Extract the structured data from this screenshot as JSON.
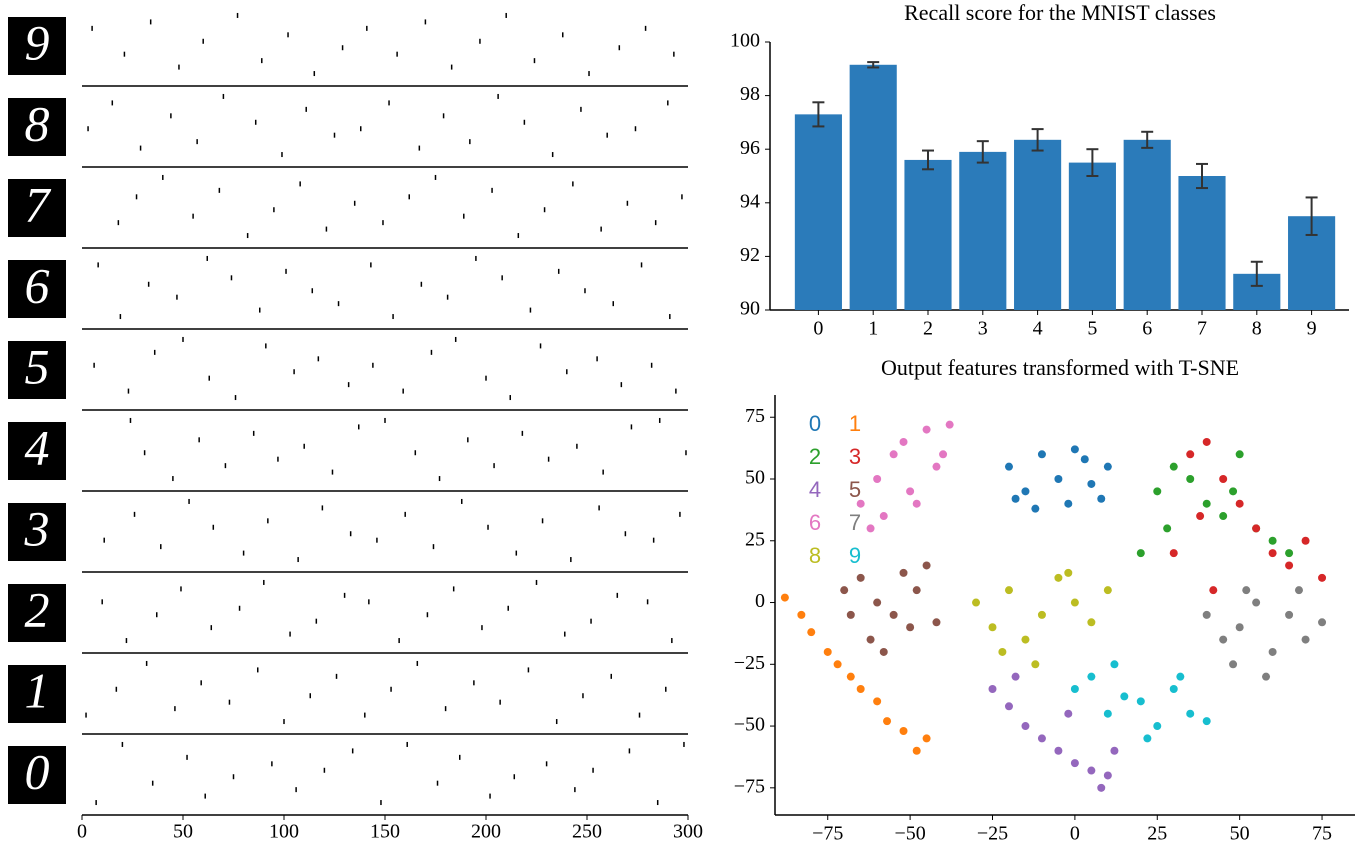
{
  "chart_data": [
    {
      "type": "raster",
      "categories": [
        "9",
        "8",
        "7",
        "6",
        "5",
        "4",
        "3",
        "2",
        "1",
        "0"
      ],
      "xlim": [
        0,
        300
      ],
      "xticks": [
        0,
        50,
        100,
        150,
        200,
        250,
        300
      ],
      "ylim": [
        -1,
        10
      ],
      "series": [
        {
          "x": [
            5,
            21,
            34,
            48,
            60,
            77,
            89,
            102,
            115,
            129,
            141,
            156,
            170,
            183,
            197,
            210,
            224,
            238,
            251,
            266,
            279,
            293
          ],
          "y": [
            2,
            6,
            1,
            8,
            4,
            0,
            7,
            3,
            9,
            5,
            2,
            6,
            1,
            8,
            4,
            0,
            7,
            3,
            9,
            5,
            2,
            6
          ]
        },
        {
          "x": [
            3,
            15,
            29,
            44,
            57,
            70,
            86,
            99,
            111,
            125,
            138,
            152,
            167,
            179,
            192,
            206,
            219,
            233,
            247,
            260,
            274,
            290
          ],
          "y": [
            5,
            1,
            8,
            3,
            7,
            0,
            4,
            9,
            2,
            6,
            5,
            1,
            8,
            3,
            7,
            0,
            4,
            9,
            2,
            6,
            5,
            1
          ]
        },
        {
          "x": [
            18,
            27,
            40,
            55,
            68,
            82,
            95,
            108,
            121,
            135,
            149,
            162,
            175,
            189,
            203,
            216,
            229,
            243,
            257,
            270,
            284,
            297
          ],
          "y": [
            7,
            3,
            0,
            6,
            2,
            9,
            5,
            1,
            8,
            4,
            7,
            3,
            0,
            6,
            2,
            9,
            5,
            1,
            8,
            4,
            7,
            3
          ]
        },
        {
          "x": [
            8,
            19,
            33,
            47,
            62,
            74,
            88,
            101,
            114,
            127,
            143,
            154,
            168,
            181,
            195,
            208,
            222,
            236,
            249,
            263,
            277,
            291
          ],
          "y": [
            1,
            9,
            4,
            6,
            0,
            3,
            8,
            2,
            5,
            7,
            1,
            9,
            4,
            6,
            0,
            3,
            8,
            2,
            5,
            7,
            1,
            9
          ]
        },
        {
          "x": [
            6,
            23,
            36,
            50,
            63,
            76,
            91,
            105,
            117,
            132,
            144,
            159,
            173,
            185,
            200,
            212,
            227,
            240,
            255,
            267,
            282,
            294
          ],
          "y": [
            4,
            8,
            2,
            0,
            6,
            9,
            1,
            5,
            3,
            7,
            4,
            8,
            2,
            0,
            6,
            9,
            1,
            5,
            3,
            7,
            4,
            8
          ]
        },
        {
          "x": [
            24,
            31,
            45,
            58,
            71,
            85,
            97,
            110,
            124,
            137,
            150,
            165,
            177,
            191,
            204,
            218,
            231,
            245,
            258,
            272,
            286,
            299
          ],
          "y": [
            0,
            5,
            9,
            3,
            7,
            2,
            6,
            4,
            8,
            1,
            0,
            5,
            9,
            3,
            7,
            2,
            6,
            4,
            8,
            1,
            0,
            5
          ]
        },
        {
          "x": [
            11,
            26,
            39,
            53,
            65,
            80,
            92,
            107,
            119,
            133,
            146,
            160,
            174,
            188,
            201,
            215,
            228,
            242,
            256,
            269,
            283,
            296
          ],
          "y": [
            6,
            2,
            7,
            0,
            4,
            8,
            3,
            9,
            1,
            5,
            6,
            2,
            7,
            0,
            4,
            8,
            3,
            9,
            1,
            5,
            6,
            2
          ]
        },
        {
          "x": [
            10,
            22,
            37,
            49,
            64,
            78,
            90,
            103,
            116,
            130,
            142,
            157,
            171,
            184,
            198,
            211,
            225,
            239,
            252,
            265,
            280,
            292
          ],
          "y": [
            3,
            9,
            5,
            1,
            7,
            4,
            0,
            8,
            6,
            2,
            3,
            9,
            5,
            1,
            7,
            4,
            0,
            8,
            6,
            2,
            3,
            9
          ]
        },
        {
          "x": [
            2,
            17,
            32,
            46,
            59,
            73,
            87,
            100,
            113,
            126,
            140,
            153,
            166,
            180,
            194,
            207,
            221,
            235,
            248,
            262,
            276,
            289
          ],
          "y": [
            8,
            4,
            0,
            7,
            3,
            6,
            1,
            9,
            5,
            2,
            8,
            4,
            0,
            7,
            3,
            6,
            1,
            9,
            5,
            2,
            8,
            4
          ]
        },
        {
          "x": [
            7,
            20,
            35,
            52,
            61,
            75,
            94,
            106,
            120,
            134,
            148,
            161,
            176,
            187,
            202,
            214,
            230,
            244,
            253,
            271,
            285,
            298
          ],
          "y": [
            9,
            0,
            6,
            2,
            8,
            5,
            3,
            7,
            4,
            1,
            9,
            0,
            6,
            2,
            8,
            5,
            3,
            7,
            4,
            1,
            9,
            0
          ]
        }
      ]
    },
    {
      "type": "bar",
      "title": "Recall score for the MNIST classes",
      "categories": [
        "0",
        "1",
        "2",
        "3",
        "4",
        "5",
        "6",
        "7",
        "8",
        "9"
      ],
      "values": [
        97.3,
        99.15,
        95.6,
        95.9,
        96.35,
        95.5,
        96.35,
        95.0,
        91.35,
        93.5
      ],
      "errors": [
        0.45,
        0.1,
        0.35,
        0.4,
        0.4,
        0.5,
        0.3,
        0.45,
        0.45,
        0.7
      ],
      "color": "#2b7bba",
      "error_color": "#333333",
      "ylim": [
        90,
        100
      ],
      "yticks": [
        90,
        92,
        94,
        96,
        98,
        100
      ]
    },
    {
      "type": "scatter",
      "title": "Output features transformed with T-SNE",
      "xlim": [
        -91,
        85
      ],
      "ylim": [
        -86,
        84
      ],
      "xticks": [
        {
          "value": -75,
          "label": "−75"
        },
        {
          "value": -50,
          "label": "−50"
        },
        {
          "value": -25,
          "label": "−25"
        },
        0,
        25,
        50,
        75
      ],
      "yticks": [
        {
          "value": -75,
          "label": "−75"
        },
        {
          "value": -50,
          "label": "−50"
        },
        {
          "value": -25,
          "label": "−25"
        },
        0,
        25,
        50,
        75
      ],
      "legend": "upper left",
      "series": [
        {
          "name": "0",
          "color": "#1f77b4",
          "x": [
            -20,
            -15,
            -10,
            -5,
            0,
            5,
            10,
            -12,
            -2,
            8,
            -18,
            3
          ],
          "y": [
            55,
            45,
            60,
            50,
            62,
            48,
            55,
            38,
            40,
            42,
            42,
            58
          ]
        },
        {
          "name": "1",
          "color": "#ff7f0e",
          "x": [
            -88,
            -83,
            -80,
            -75,
            -72,
            -68,
            -65,
            -60,
            -57,
            -52,
            -48,
            -45
          ],
          "y": [
            2,
            -5,
            -12,
            -20,
            -25,
            -30,
            -35,
            -40,
            -48,
            -52,
            -60,
            -55
          ]
        },
        {
          "name": "2",
          "color": "#2ca02c",
          "x": [
            25,
            30,
            35,
            40,
            45,
            50,
            55,
            60,
            20,
            28,
            48,
            65
          ],
          "y": [
            45,
            55,
            50,
            40,
            35,
            60,
            30,
            25,
            20,
            30,
            45,
            20
          ]
        },
        {
          "name": "3",
          "color": "#d62728",
          "x": [
            35,
            40,
            45,
            50,
            55,
            60,
            65,
            70,
            75,
            42,
            30,
            38
          ],
          "y": [
            60,
            65,
            50,
            40,
            30,
            20,
            15,
            25,
            10,
            5,
            20,
            35
          ]
        },
        {
          "name": "4",
          "color": "#9467bd",
          "x": [
            -25,
            -20,
            -15,
            -10,
            -5,
            0,
            5,
            10,
            -18,
            -2,
            12,
            8
          ],
          "y": [
            -35,
            -42,
            -50,
            -55,
            -60,
            -65,
            -68,
            -70,
            -30,
            -45,
            -60,
            -75
          ]
        },
        {
          "name": "5",
          "color": "#8c564b",
          "x": [
            -70,
            -65,
            -60,
            -55,
            -50,
            -45,
            -62,
            -52,
            -58,
            -68,
            -48,
            -42
          ],
          "y": [
            5,
            10,
            0,
            -5,
            -10,
            15,
            -15,
            12,
            -20,
            -5,
            5,
            -8
          ]
        },
        {
          "name": "6",
          "color": "#e377c2",
          "x": [
            -65,
            -60,
            -55,
            -50,
            -45,
            -42,
            -62,
            -58,
            -52,
            -48,
            -40,
            -38
          ],
          "y": [
            40,
            50,
            60,
            45,
            70,
            55,
            30,
            35,
            65,
            40,
            60,
            72
          ]
        },
        {
          "name": "7",
          "color": "#7f7f7f",
          "x": [
            40,
            45,
            50,
            55,
            60,
            65,
            70,
            75,
            48,
            58,
            68,
            52
          ],
          "y": [
            -5,
            -15,
            -10,
            0,
            -20,
            -5,
            -15,
            -8,
            -25,
            -30,
            5,
            5
          ]
        },
        {
          "name": "8",
          "color": "#bcbd22",
          "x": [
            -30,
            -25,
            -20,
            -15,
            -10,
            -5,
            0,
            5,
            10,
            -22,
            -12,
            -2
          ],
          "y": [
            0,
            -10,
            5,
            -15,
            -5,
            10,
            0,
            -8,
            5,
            -20,
            -25,
            12
          ]
        },
        {
          "name": "9",
          "color": "#17becf",
          "x": [
            0,
            5,
            10,
            15,
            20,
            25,
            30,
            35,
            40,
            12,
            22,
            32
          ],
          "y": [
            -35,
            -30,
            -45,
            -38,
            -40,
            -50,
            -35,
            -45,
            -48,
            -25,
            -55,
            -30
          ]
        }
      ]
    }
  ]
}
